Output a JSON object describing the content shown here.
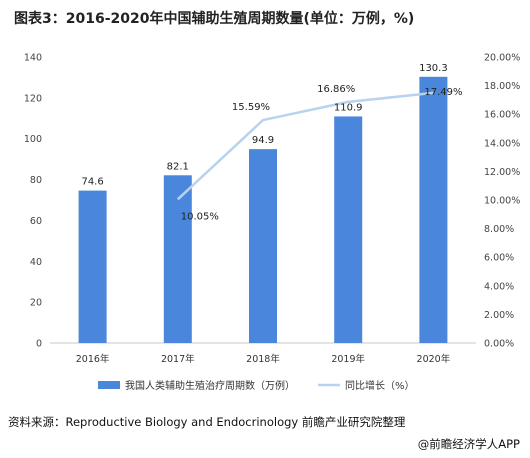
{
  "title": "图表3：2016-2020年中国辅助生殖周期数量(单位：万例，%)",
  "source": "资料来源：Reproductive Biology and Endocrinology 前瞻产业研究院整理",
  "brand": "@前瞻经济学人APP",
  "chart_data": {
    "type": "bar",
    "categories": [
      "2016年",
      "2017年",
      "2018年",
      "2019年",
      "2020年"
    ],
    "y_left": {
      "min": 0,
      "max": 140,
      "step": 20,
      "ticks": [
        "0",
        "20",
        "40",
        "60",
        "80",
        "100",
        "120",
        "140"
      ]
    },
    "y_right": {
      "min": 0,
      "max": 20,
      "step": 2,
      "ticks": [
        "0.00%",
        "2.00%",
        "4.00%",
        "6.00%",
        "8.00%",
        "10.00%",
        "12.00%",
        "14.00%",
        "16.00%",
        "18.00%",
        "20.00%"
      ]
    },
    "series": [
      {
        "name": "我国人类辅助生殖治疗周期数（万例）",
        "type": "bar",
        "axis": "left",
        "values": [
          74.6,
          82.1,
          94.9,
          110.9,
          130.3
        ],
        "labels": [
          "74.6",
          "82.1",
          "94.9",
          "110.9",
          "130.3"
        ],
        "color": "#4a86db"
      },
      {
        "name": "同比增长（%）",
        "type": "line",
        "axis": "right",
        "values": [
          null,
          10.05,
          15.59,
          16.86,
          17.49
        ],
        "labels": [
          "",
          "10.05%",
          "15.59%",
          "16.86%",
          "17.49%"
        ],
        "color": "#b7d3ef"
      }
    ],
    "legend_position": "bottom",
    "grid": false
  }
}
